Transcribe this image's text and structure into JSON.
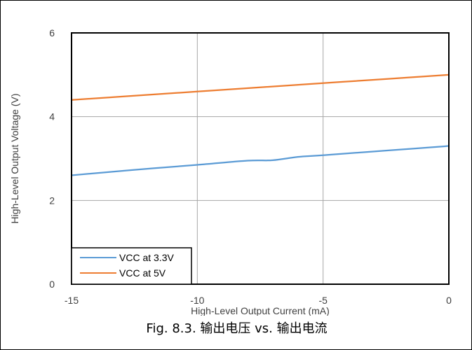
{
  "caption": "Fig. 8.3. 输出电压 vs. 输出电流",
  "chart_data": {
    "type": "line",
    "title": "",
    "xlabel": "High-Level Output Current (mA)",
    "ylabel": "High-Level Output Voltage (V)",
    "xlim": [
      -15,
      0
    ],
    "ylim": [
      0,
      6
    ],
    "xticks": [
      -15,
      -10,
      -5,
      0
    ],
    "yticks": [
      0,
      2,
      4,
      6
    ],
    "xtick_labels": [
      "-15",
      "-10",
      "-5",
      "0"
    ],
    "ytick_labels": [
      "0",
      "2",
      "4",
      "6"
    ],
    "grid": true,
    "legend_position": "bottom-left",
    "series": [
      {
        "name": "VCC at 3.3V",
        "color": "#5b9bd5",
        "x": [
          -15,
          -12.5,
          -10,
          -8,
          -7,
          -6,
          -5,
          -2.5,
          0
        ],
        "y": [
          2.6,
          2.73,
          2.85,
          2.95,
          2.96,
          3.04,
          3.08,
          3.19,
          3.3
        ]
      },
      {
        "name": "VCC at 5V",
        "color": "#ed7d31",
        "x": [
          -15,
          -12.5,
          -10,
          -7.5,
          -5,
          -2.5,
          0
        ],
        "y": [
          4.4,
          4.5,
          4.6,
          4.7,
          4.8,
          4.9,
          5.0
        ]
      }
    ]
  }
}
